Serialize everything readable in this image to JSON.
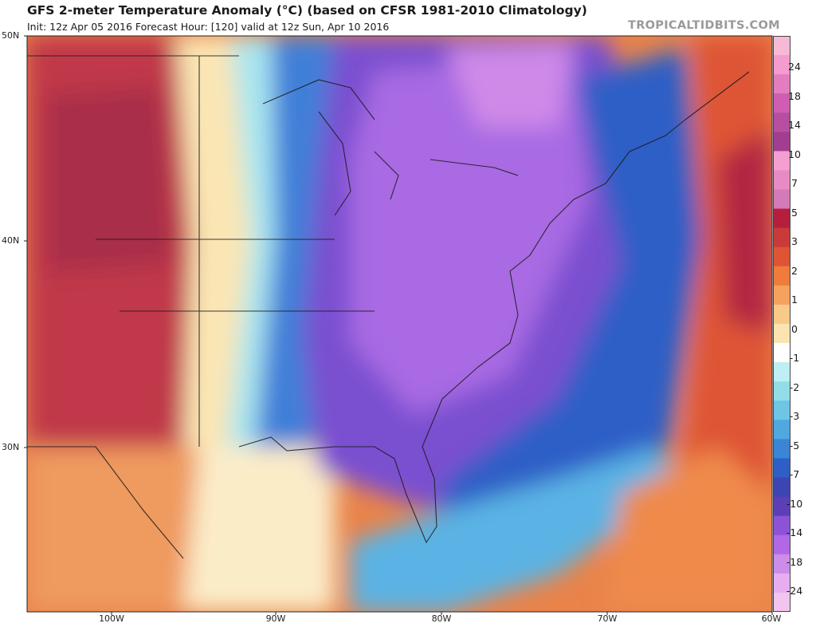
{
  "header": {
    "title": "GFS 2-meter Temperature Anomaly (°C) (based on CFSR 1981-2010 Climatology)",
    "subtitle": "Init: 12z Apr 05 2016   Forecast Hour: [120]   valid at 12z Sun, Apr 10 2016",
    "brand": "TROPICALTIDBITS.COM"
  },
  "axes": {
    "lat_labels": [
      "50N",
      "40N",
      "30N"
    ],
    "lon_labels": [
      "100W",
      "90W",
      "80W",
      "70W",
      "60W"
    ]
  },
  "colorbar": {
    "labels": [
      "24",
      "18",
      "14",
      "10",
      "7",
      "5",
      "3",
      "2",
      "1",
      "0",
      "-1",
      "-2",
      "-3",
      "-5",
      "-7",
      "-10",
      "-14",
      "-18",
      "-24"
    ],
    "colors": [
      "#f7b9d6",
      "#f49ccd",
      "#e47cc0",
      "#cf5db1",
      "#b84e9f",
      "#a23e90",
      "#f49fd0",
      "#e88ac3",
      "#d57ab8",
      "#b51f3d",
      "#c93b3b",
      "#de5536",
      "#ef7c3d",
      "#f6a25e",
      "#f9c98a",
      "#fbe4b0",
      "#ffffff",
      "#bdeff5",
      "#93dde9",
      "#6cc6e4",
      "#4fa8e0",
      "#3b85d6",
      "#2e5fc6",
      "#3d45b3",
      "#5b3fb6",
      "#8c53d6",
      "#b268e6",
      "#cc8ce8",
      "#e6aef0",
      "#f1c5ee"
    ]
  },
  "map": {
    "field": "2-meter temperature anomaly",
    "cold_anomaly_region": "eastern United States",
    "warm_anomaly_regions": [
      "Great Plains",
      "western Atlantic"
    ]
  }
}
